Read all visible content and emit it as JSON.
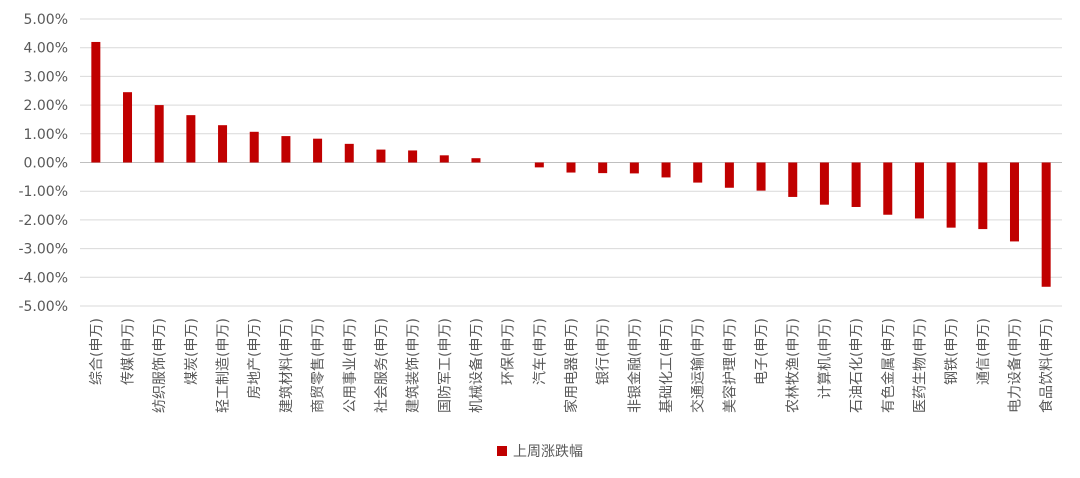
{
  "chart_data": {
    "type": "bar",
    "title": "",
    "xlabel": "",
    "ylabel": "",
    "ylim": [
      -5,
      5
    ],
    "ytick_step": 1,
    "ytick_labels": [
      "5.00%",
      "4.00%",
      "3.00%",
      "2.00%",
      "1.00%",
      "0.00%",
      "-1.00%",
      "-2.00%",
      "-3.00%",
      "-4.00%",
      "-5.00%"
    ],
    "grid": true,
    "legend_position": "bottom-center",
    "categories": [
      "综合(申万)",
      "传媒(申万)",
      "纺织服饰(申万)",
      "煤炭(申万)",
      "轻工制造(申万)",
      "房地产(申万)",
      "建筑材料(申万)",
      "商贸零售(申万)",
      "公用事业(申万)",
      "社会服务(申万)",
      "建筑装饰(申万)",
      "国防军工(申万)",
      "机械设备(申万)",
      "环保(申万)",
      "汽车(申万)",
      "家用电器(申万)",
      "银行(申万)",
      "非银金融(申万)",
      "基础化工(申万)",
      "交通运输(申万)",
      "美容护理(申万)",
      "电子(申万)",
      "农林牧渔(申万)",
      "计算机(申万)",
      "石油石化(申万)",
      "有色金属(申万)",
      "医药生物(申万)",
      "钢铁(申万)",
      "通信(申万)",
      "电力设备(申万)",
      "食品饮料(申万)"
    ],
    "series": [
      {
        "name": "上周涨跌幅",
        "color": "#C00000",
        "values": [
          4.2,
          2.45,
          2.0,
          1.65,
          1.3,
          1.07,
          0.92,
          0.83,
          0.65,
          0.45,
          0.42,
          0.25,
          0.15,
          0.0,
          -0.17,
          -0.35,
          -0.37,
          -0.38,
          -0.52,
          -0.7,
          -0.88,
          -0.98,
          -1.2,
          -1.47,
          -1.55,
          -1.82,
          -1.95,
          -2.27,
          -2.32,
          -2.75,
          -4.33
        ]
      }
    ]
  }
}
